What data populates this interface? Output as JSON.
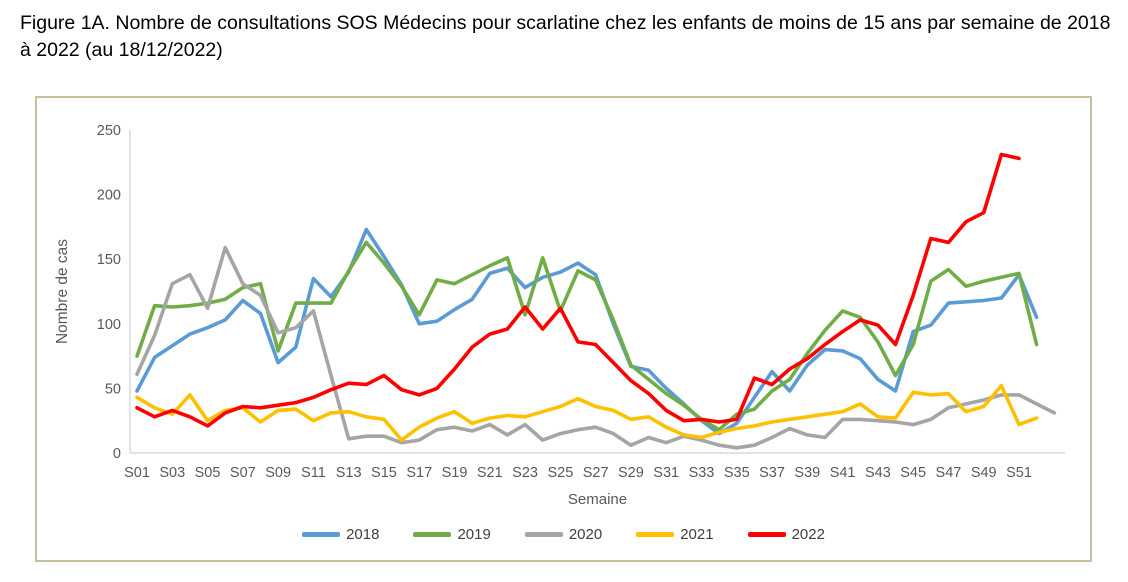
{
  "title": "Figure 1A. Nombre de consultations SOS Médecins pour scarlatine chez les enfants de moins de 15 ans par semaine de 2018 à 2022 (au 18/12/2022)",
  "frame": {
    "border_color": "#C8BF9B"
  },
  "axis_style": {
    "line_color": "#D9D9D9",
    "text_color": "#595959"
  },
  "chart_data": {
    "type": "line",
    "title": "",
    "xlabel": "Semaine",
    "ylabel": "Nombre de cas",
    "ylim": [
      0,
      250
    ],
    "yticks": [
      0,
      50,
      100,
      150,
      200,
      250
    ],
    "xtick_labels": [
      "S01",
      "S03",
      "S05",
      "S07",
      "S09",
      "S11",
      "S13",
      "S15",
      "S17",
      "S19",
      "S21",
      "S23",
      "S25",
      "S27",
      "S29",
      "S31",
      "S33",
      "S35",
      "S37",
      "S39",
      "S41",
      "S43",
      "S45",
      "S47",
      "S49",
      "S51"
    ],
    "grid": false,
    "legend_position": "bottom",
    "series": [
      {
        "name": "2018",
        "color": "#5B9BD5",
        "start_week": 1,
        "values": [
          48,
          74,
          83,
          92,
          97,
          103,
          118,
          108,
          70,
          82,
          135,
          121,
          140,
          173,
          152,
          130,
          100,
          102,
          111,
          119,
          139,
          143,
          128,
          136,
          140,
          147,
          138,
          100,
          67,
          64,
          50,
          38,
          25,
          15,
          23,
          43,
          63,
          48,
          68,
          80,
          79,
          73,
          57,
          48,
          94,
          99,
          116,
          117,
          118,
          120,
          138,
          105
        ]
      },
      {
        "name": "2019",
        "color": "#70AD47",
        "start_week": 1,
        "values": [
          75,
          114,
          113,
          114,
          116,
          119,
          128,
          131,
          79,
          116,
          116,
          116,
          141,
          163,
          147,
          129,
          107,
          134,
          131,
          138,
          145,
          151,
          107,
          151,
          110,
          141,
          134,
          103,
          68,
          57,
          46,
          37,
          26,
          18,
          30,
          34,
          48,
          57,
          77,
          95,
          110,
          105,
          86,
          60,
          84,
          133,
          142,
          129,
          133,
          136,
          139,
          84
        ]
      },
      {
        "name": "2020",
        "color": "#A5A5A5",
        "start_week": 1,
        "values": [
          61,
          91,
          131,
          138,
          112,
          159,
          131,
          122,
          93,
          97,
          110,
          60,
          11,
          13,
          13,
          8,
          10,
          18,
          20,
          17,
          22,
          14,
          22,
          10,
          15,
          18,
          20,
          15,
          6,
          12,
          8,
          13,
          10,
          6,
          4,
          6,
          12,
          19,
          14,
          12,
          26,
          26,
          25,
          24,
          22,
          26,
          35,
          38,
          41,
          45,
          45,
          38,
          31
        ]
      },
      {
        "name": "2021",
        "color": "#FFC000",
        "start_week": 1,
        "values": [
          43,
          35,
          30,
          45,
          25,
          33,
          35,
          24,
          33,
          34,
          25,
          31,
          32,
          28,
          26,
          10,
          20,
          27,
          32,
          23,
          27,
          29,
          28,
          32,
          36,
          42,
          36,
          33,
          26,
          28,
          20,
          14,
          12,
          16,
          19,
          21,
          24,
          26,
          28,
          30,
          32,
          38,
          28,
          27,
          47,
          45,
          46,
          32,
          36,
          52,
          22,
          27
        ]
      },
      {
        "name": "2022",
        "color": "#FF0000",
        "start_week": 1,
        "values": [
          35,
          28,
          33,
          28,
          21,
          31,
          36,
          35,
          37,
          39,
          43,
          49,
          54,
          53,
          60,
          49,
          45,
          50,
          65,
          82,
          92,
          96,
          113,
          96,
          112,
          86,
          84,
          70,
          56,
          46,
          33,
          25,
          26,
          24,
          26,
          58,
          53,
          65,
          73,
          84,
          94,
          103,
          99,
          84,
          122,
          166,
          163,
          179,
          186,
          231,
          228
        ]
      }
    ]
  }
}
